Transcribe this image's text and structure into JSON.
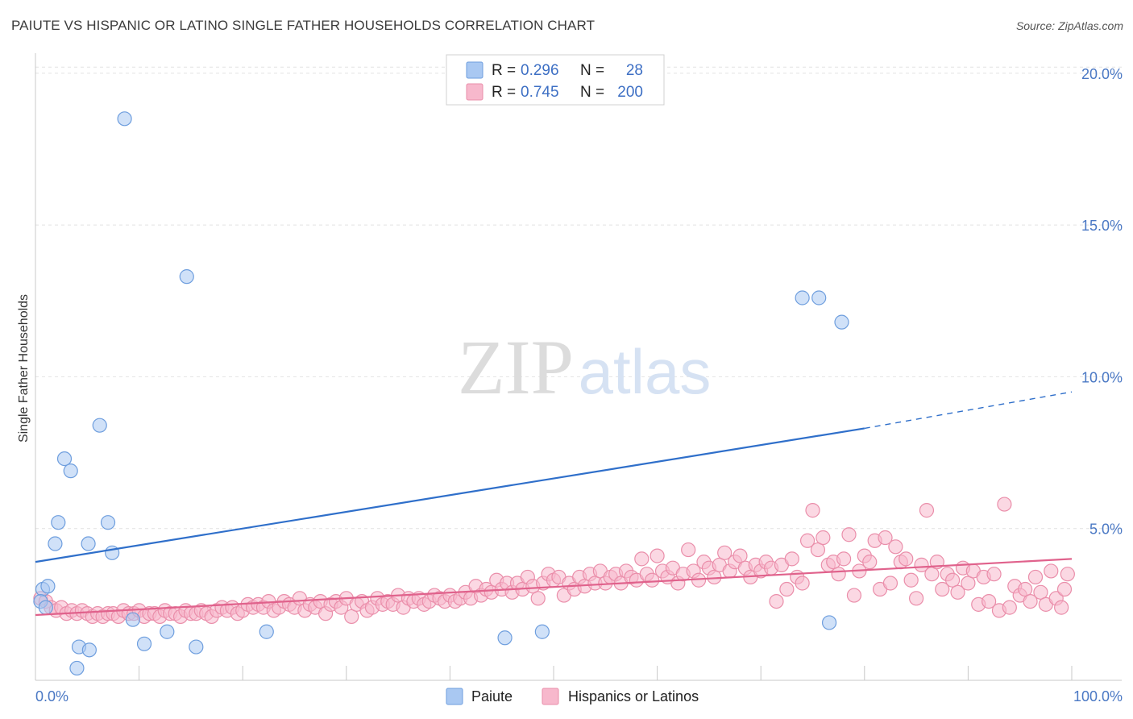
{
  "header": {
    "title": "PAIUTE VS HISPANIC OR LATINO SINGLE FATHER HOUSEHOLDS CORRELATION CHART",
    "source": "Source: ZipAtlas.com"
  },
  "watermark": {
    "part1": "ZIP",
    "part2": "atlas"
  },
  "legend": {
    "rows": [
      {
        "r_label": "R =",
        "r_value": "0.296",
        "n_label": "N =",
        "n_value": "28",
        "color": "#a9c8f2"
      },
      {
        "r_label": "R =",
        "r_value": "0.745",
        "n_label": "N =",
        "n_value": "200",
        "color": "#f7b8cc"
      }
    ]
  },
  "bottom_legend": [
    {
      "label": "Paiute",
      "color": "#a9c8f2"
    },
    {
      "label": "Hispanics or Latinos",
      "color": "#f7b8cc"
    }
  ],
  "chart_data": {
    "type": "scatter",
    "title": "PAIUTE VS HISPANIC OR LATINO SINGLE FATHER HOUSEHOLDS CORRELATION CHART",
    "ylabel": "Single Father Households",
    "xlabel": "",
    "xlim": [
      0,
      100
    ],
    "ylim": [
      0,
      20.5
    ],
    "x_tick_labels": [
      "0.0%",
      "100.0%"
    ],
    "y_ticks": [
      5,
      10,
      15,
      20
    ],
    "y_tick_labels": [
      "5.0%",
      "10.0%",
      "15.0%",
      "20.0%"
    ],
    "grid": true,
    "series": [
      {
        "name": "Paiute",
        "color": "#a9c8f2",
        "stroke": "#6e9ede",
        "trend_color": "#2f6fca",
        "trend": {
          "x0": 0,
          "y0": 3.9,
          "x1": 80,
          "y1": 8.3,
          "dash_to_x": 100,
          "dash_to_y": 9.5
        },
        "points": [
          [
            0.7,
            3.0
          ],
          [
            1.2,
            3.1
          ],
          [
            0.5,
            2.6
          ],
          [
            8.6,
            18.5
          ],
          [
            14.6,
            13.3
          ],
          [
            6.2,
            8.4
          ],
          [
            2.8,
            7.3
          ],
          [
            3.4,
            6.9
          ],
          [
            2.2,
            5.2
          ],
          [
            7.0,
            5.2
          ],
          [
            1.9,
            4.5
          ],
          [
            5.1,
            4.5
          ],
          [
            7.4,
            4.2
          ],
          [
            1.0,
            2.4
          ],
          [
            9.4,
            2.0
          ],
          [
            12.7,
            1.6
          ],
          [
            10.5,
            1.2
          ],
          [
            15.5,
            1.1
          ],
          [
            4.2,
            1.1
          ],
          [
            5.2,
            1.0
          ],
          [
            4.0,
            0.4
          ],
          [
            22.3,
            1.6
          ],
          [
            45.3,
            1.4
          ],
          [
            48.9,
            1.6
          ],
          [
            74.0,
            12.6
          ],
          [
            75.6,
            12.6
          ],
          [
            77.8,
            11.8
          ],
          [
            76.6,
            1.9
          ]
        ]
      },
      {
        "name": "Hispanics or Latinos",
        "color": "#f7b8cc",
        "stroke": "#ea8eaa",
        "trend_color": "#e0628c",
        "trend": {
          "x0": 0,
          "y0": 2.15,
          "x1": 100,
          "y1": 4.0
        },
        "points": [
          [
            0.5,
            2.7
          ],
          [
            1.0,
            2.6
          ],
          [
            1.5,
            2.4
          ],
          [
            2.0,
            2.3
          ],
          [
            2.5,
            2.4
          ],
          [
            3.0,
            2.2
          ],
          [
            3.5,
            2.3
          ],
          [
            4.0,
            2.2
          ],
          [
            4.5,
            2.3
          ],
          [
            5.0,
            2.2
          ],
          [
            5.5,
            2.1
          ],
          [
            6.0,
            2.2
          ],
          [
            6.5,
            2.1
          ],
          [
            7.0,
            2.2
          ],
          [
            7.5,
            2.2
          ],
          [
            8.0,
            2.1
          ],
          [
            8.5,
            2.3
          ],
          [
            9.0,
            2.2
          ],
          [
            9.5,
            2.2
          ],
          [
            10.0,
            2.3
          ],
          [
            10.5,
            2.1
          ],
          [
            11.0,
            2.2
          ],
          [
            11.5,
            2.2
          ],
          [
            12.0,
            2.1
          ],
          [
            12.5,
            2.3
          ],
          [
            13.0,
            2.2
          ],
          [
            13.5,
            2.2
          ],
          [
            14.0,
            2.1
          ],
          [
            14.5,
            2.3
          ],
          [
            15.0,
            2.2
          ],
          [
            15.5,
            2.2
          ],
          [
            16.0,
            2.3
          ],
          [
            16.5,
            2.2
          ],
          [
            17.0,
            2.1
          ],
          [
            17.5,
            2.3
          ],
          [
            18.0,
            2.4
          ],
          [
            18.5,
            2.3
          ],
          [
            19.0,
            2.4
          ],
          [
            19.5,
            2.2
          ],
          [
            20.0,
            2.3
          ],
          [
            20.5,
            2.5
          ],
          [
            21.0,
            2.4
          ],
          [
            21.5,
            2.5
          ],
          [
            22.0,
            2.4
          ],
          [
            22.5,
            2.6
          ],
          [
            23.0,
            2.3
          ],
          [
            23.5,
            2.4
          ],
          [
            24.0,
            2.6
          ],
          [
            24.5,
            2.5
          ],
          [
            25.0,
            2.4
          ],
          [
            25.5,
            2.7
          ],
          [
            26.0,
            2.3
          ],
          [
            26.5,
            2.5
          ],
          [
            27.0,
            2.4
          ],
          [
            27.5,
            2.6
          ],
          [
            28.0,
            2.2
          ],
          [
            28.5,
            2.5
          ],
          [
            29.0,
            2.6
          ],
          [
            29.5,
            2.4
          ],
          [
            30.0,
            2.7
          ],
          [
            30.5,
            2.1
          ],
          [
            31.0,
            2.5
          ],
          [
            31.5,
            2.6
          ],
          [
            32.0,
            2.3
          ],
          [
            32.5,
            2.4
          ],
          [
            33.0,
            2.7
          ],
          [
            33.5,
            2.5
          ],
          [
            34.0,
            2.6
          ],
          [
            34.5,
            2.5
          ],
          [
            35.0,
            2.8
          ],
          [
            35.5,
            2.4
          ],
          [
            36.0,
            2.7
          ],
          [
            36.5,
            2.6
          ],
          [
            37.0,
            2.7
          ],
          [
            37.5,
            2.5
          ],
          [
            38.0,
            2.6
          ],
          [
            38.5,
            2.8
          ],
          [
            39.0,
            2.7
          ],
          [
            39.5,
            2.6
          ],
          [
            40.0,
            2.8
          ],
          [
            40.5,
            2.6
          ],
          [
            41.0,
            2.7
          ],
          [
            41.5,
            2.9
          ],
          [
            42.0,
            2.7
          ],
          [
            42.5,
            3.1
          ],
          [
            43.0,
            2.8
          ],
          [
            43.5,
            3.0
          ],
          [
            44.0,
            2.9
          ],
          [
            44.5,
            3.3
          ],
          [
            45.0,
            3.0
          ],
          [
            45.5,
            3.2
          ],
          [
            46.0,
            2.9
          ],
          [
            46.5,
            3.2
          ],
          [
            47.0,
            3.0
          ],
          [
            47.5,
            3.4
          ],
          [
            48.0,
            3.1
          ],
          [
            48.5,
            2.7
          ],
          [
            49.0,
            3.2
          ],
          [
            49.5,
            3.5
          ],
          [
            50.0,
            3.3
          ],
          [
            50.5,
            3.4
          ],
          [
            51.0,
            2.8
          ],
          [
            51.5,
            3.2
          ],
          [
            52.0,
            3.0
          ],
          [
            52.5,
            3.4
          ],
          [
            53.0,
            3.1
          ],
          [
            53.5,
            3.5
          ],
          [
            54.0,
            3.2
          ],
          [
            54.5,
            3.6
          ],
          [
            55.0,
            3.2
          ],
          [
            55.5,
            3.4
          ],
          [
            56.0,
            3.5
          ],
          [
            56.5,
            3.2
          ],
          [
            57.0,
            3.6
          ],
          [
            57.5,
            3.4
          ],
          [
            58.0,
            3.3
          ],
          [
            58.5,
            4.0
          ],
          [
            59.0,
            3.5
          ],
          [
            59.5,
            3.3
          ],
          [
            60.0,
            4.1
          ],
          [
            60.5,
            3.6
          ],
          [
            61.0,
            3.4
          ],
          [
            61.5,
            3.7
          ],
          [
            62.0,
            3.2
          ],
          [
            62.5,
            3.5
          ],
          [
            63.0,
            4.3
          ],
          [
            63.5,
            3.6
          ],
          [
            64.0,
            3.3
          ],
          [
            64.5,
            3.9
          ],
          [
            65.0,
            3.7
          ],
          [
            65.5,
            3.4
          ],
          [
            66.0,
            3.8
          ],
          [
            66.5,
            4.2
          ],
          [
            67.0,
            3.6
          ],
          [
            67.5,
            3.9
          ],
          [
            68.0,
            4.1
          ],
          [
            68.5,
            3.7
          ],
          [
            69.0,
            3.4
          ],
          [
            69.5,
            3.8
          ],
          [
            70.0,
            3.6
          ],
          [
            70.5,
            3.9
          ],
          [
            71.0,
            3.7
          ],
          [
            71.5,
            2.6
          ],
          [
            72.0,
            3.8
          ],
          [
            72.5,
            3.0
          ],
          [
            73.0,
            4.0
          ],
          [
            73.5,
            3.4
          ],
          [
            74.0,
            3.2
          ],
          [
            74.5,
            4.6
          ],
          [
            75.0,
            5.6
          ],
          [
            75.5,
            4.3
          ],
          [
            76.0,
            4.7
          ],
          [
            76.5,
            3.8
          ],
          [
            77.0,
            3.9
          ],
          [
            77.5,
            3.5
          ],
          [
            78.0,
            4.0
          ],
          [
            78.5,
            4.8
          ],
          [
            79.0,
            2.8
          ],
          [
            79.5,
            3.6
          ],
          [
            80.0,
            4.1
          ],
          [
            80.5,
            3.9
          ],
          [
            81.0,
            4.6
          ],
          [
            81.5,
            3.0
          ],
          [
            82.0,
            4.7
          ],
          [
            82.5,
            3.2
          ],
          [
            83.0,
            4.4
          ],
          [
            83.5,
            3.9
          ],
          [
            84.0,
            4.0
          ],
          [
            84.5,
            3.3
          ],
          [
            85.0,
            2.7
          ],
          [
            85.5,
            3.8
          ],
          [
            86.0,
            5.6
          ],
          [
            86.5,
            3.5
          ],
          [
            87.0,
            3.9
          ],
          [
            87.5,
            3.0
          ],
          [
            88.0,
            3.5
          ],
          [
            88.5,
            3.3
          ],
          [
            89.0,
            2.9
          ],
          [
            89.5,
            3.7
          ],
          [
            90.0,
            3.2
          ],
          [
            90.5,
            3.6
          ],
          [
            91.0,
            2.5
          ],
          [
            91.5,
            3.4
          ],
          [
            92.0,
            2.6
          ],
          [
            92.5,
            3.5
          ],
          [
            93.0,
            2.3
          ],
          [
            93.5,
            5.8
          ],
          [
            94.0,
            2.4
          ],
          [
            94.5,
            3.1
          ],
          [
            95.0,
            2.8
          ],
          [
            95.5,
            3.0
          ],
          [
            96.0,
            2.6
          ],
          [
            96.5,
            3.4
          ],
          [
            97.0,
            2.9
          ],
          [
            97.5,
            2.5
          ],
          [
            98.0,
            3.6
          ],
          [
            98.5,
            2.7
          ],
          [
            99.0,
            2.4
          ],
          [
            99.3,
            3.0
          ],
          [
            99.6,
            3.5
          ]
        ]
      }
    ]
  }
}
